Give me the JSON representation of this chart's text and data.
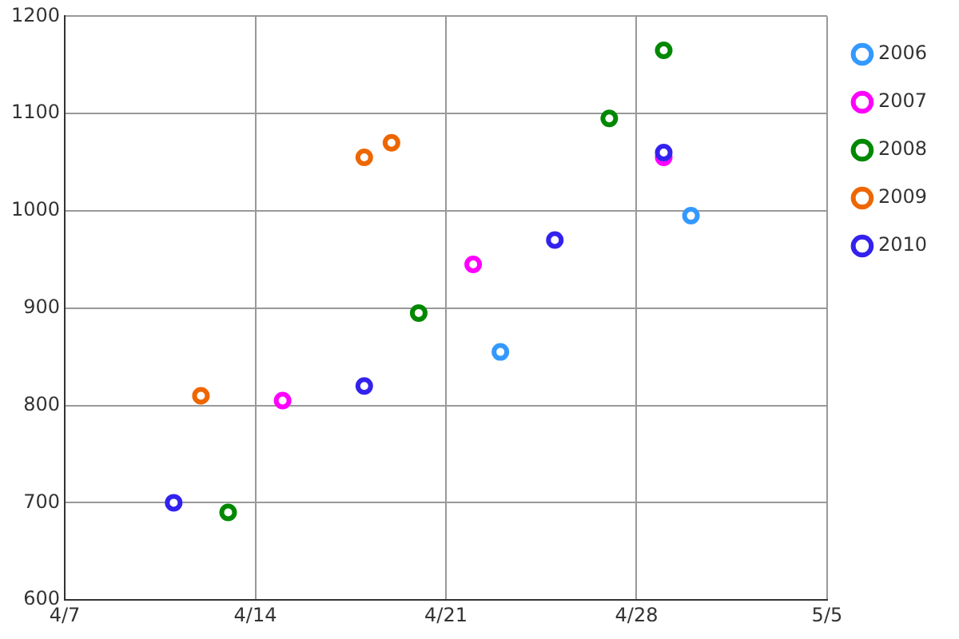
{
  "chart_data": {
    "type": "scatter",
    "marker": "circle",
    "grid": true,
    "legend": "right",
    "xlim": [
      "--04-07",
      "--05-05"
    ],
    "xticks": [
      {
        "value": "--04-07",
        "label": "4/7"
      },
      {
        "value": "--04-14",
        "label": "4/14"
      },
      {
        "value": "--04-21",
        "label": "4/21"
      },
      {
        "value": "--04-28",
        "label": "4/28"
      },
      {
        "value": "--05-05",
        "label": "5/5"
      }
    ],
    "ylim": [
      600,
      1200
    ],
    "yticks": [
      600,
      700,
      800,
      900,
      1000,
      1100,
      1200
    ],
    "series": [
      {
        "name": "2006",
        "color": "#3399ff",
        "x": [
          "--04-23",
          "--04-30"
        ],
        "values": [
          855,
          995
        ]
      },
      {
        "name": "2007",
        "color": "#ff00ff",
        "x": [
          "--04-15",
          "--04-22",
          "--04-29"
        ],
        "values": [
          805,
          945,
          1055
        ]
      },
      {
        "name": "2008",
        "color": "#008800",
        "x": [
          "--04-13",
          "--04-20",
          "--04-27",
          "--04-29"
        ],
        "values": [
          690,
          895,
          1095,
          1165
        ]
      },
      {
        "name": "2009",
        "color": "#ee6600",
        "x": [
          "--04-12",
          "--04-18",
          "--04-19"
        ],
        "values": [
          810,
          1055,
          1070
        ]
      },
      {
        "name": "2010",
        "color": "#3322ee",
        "x": [
          "--04-11",
          "--04-18",
          "--04-25",
          "--04-29"
        ],
        "values": [
          700,
          820,
          970,
          1060
        ]
      }
    ]
  }
}
